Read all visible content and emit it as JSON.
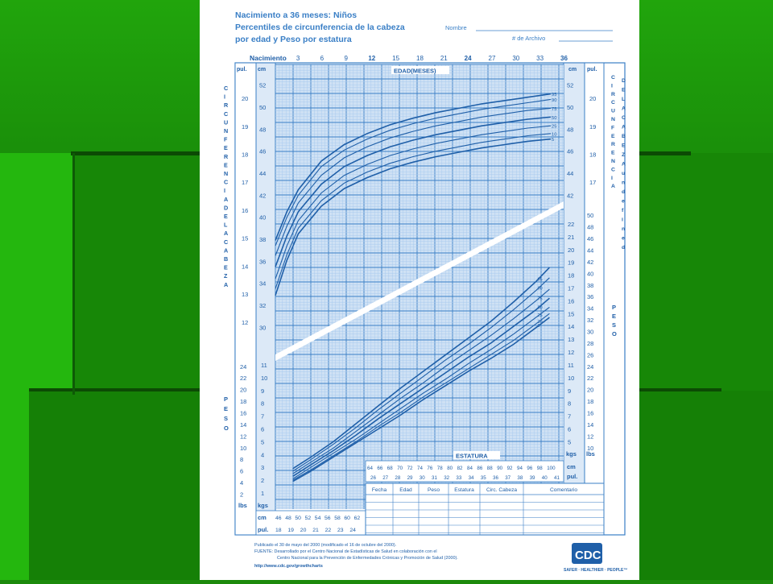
{
  "header": {
    "title_line1": "Nacimiento a 36 meses: Niños",
    "title_line2": "Percentiles de circunferencia de la cabeza",
    "title_line3": "por edad y Peso por estatura",
    "name_label": "Nombre",
    "file_label": "# de Archivo"
  },
  "axes": {
    "top_birth": "Nacimiento",
    "top_months": [
      "3",
      "6",
      "9",
      "12",
      "15",
      "18",
      "21",
      "24",
      "27",
      "30",
      "33",
      "36"
    ],
    "edad_label": "EDAD(MESES)",
    "estatura_label": "ESTATURA",
    "pul": "pul.",
    "cm": "cm",
    "kgs": "kgs",
    "lbs": "lbs",
    "left_vertical_head": "CIRCUNFERENCIA DE LA CABEZA",
    "right_vertical_head": "CIRCUNFERENCIA DE LA CABEZA",
    "left_vertical_weight": "PESO",
    "right_vertical_weight": "PESO",
    "head_cm_ticks": [
      "52",
      "50",
      "48",
      "46",
      "44",
      "42",
      "40",
      "38",
      "36",
      "34",
      "32",
      "30"
    ],
    "head_in_ticks_left": [
      "20",
      "19",
      "18",
      "17",
      "16",
      "15",
      "14",
      "13",
      "12"
    ],
    "head_in_ticks_right": [
      "20",
      "19",
      "18",
      "17"
    ],
    "head_cm_ticks_right": [
      "52",
      "50",
      "48",
      "46",
      "44",
      "42"
    ],
    "weight_kg_right": [
      "22",
      "21",
      "20",
      "19",
      "18",
      "17",
      "16",
      "15",
      "14",
      "13",
      "12",
      "11",
      "10",
      "9",
      "8",
      "7",
      "6",
      "5"
    ],
    "weight_lb_right": [
      "50",
      "48",
      "46",
      "44",
      "42",
      "40",
      "38",
      "36",
      "34",
      "32",
      "30",
      "28",
      "26",
      "24",
      "22",
      "20",
      "18",
      "16",
      "14",
      "12",
      "10"
    ],
    "weight_kg_left": [
      "11",
      "10",
      "9",
      "8",
      "7",
      "6",
      "5",
      "4",
      "3",
      "2",
      "1"
    ],
    "weight_lb_left": [
      "24",
      "22",
      "20",
      "18",
      "16",
      "14",
      "12",
      "10",
      "8",
      "6",
      "4",
      "2"
    ],
    "bottom_cm": [
      "46",
      "48",
      "50",
      "52",
      "54",
      "56",
      "58",
      "60",
      "62"
    ],
    "bottom_in": [
      "18",
      "19",
      "20",
      "21",
      "22",
      "23",
      "24"
    ],
    "stature_in_upper": [
      "64",
      "66",
      "68",
      "70",
      "72",
      "74",
      "76",
      "78",
      "80",
      "82",
      "84",
      "86",
      "88",
      "90",
      "92",
      "94",
      "96",
      "98",
      "100"
    ],
    "stature_in_lower": [
      "26",
      "27",
      "28",
      "29",
      "30",
      "31",
      "32",
      "33",
      "34",
      "35",
      "36",
      "37",
      "38",
      "39",
      "40",
      "41"
    ]
  },
  "table": {
    "headers": [
      "Fecha",
      "Edad",
      "Peso",
      "Estatura",
      "Circ. Cabeza",
      "Comentario"
    ]
  },
  "footer": {
    "line1": "Publicado el 30 de mayo del 2000 (modificado el 16 de octubre del 2000).",
    "line2": "FUENTE: Desarrollado por el Centro Nacional de Estadísticas de Salud en colaboración con el",
    "line3": "Centro Nacional para la Prevención de Enfermedades Crónicas y Promoción de Salud (2000).",
    "line4": "http://www.cdc.gov/growthcharts",
    "logo_text": "CDC",
    "logo_tagline": "SAFER · HEALTHIER · PEOPLE™"
  },
  "colors": {
    "grid_blue": "#3a7fc6",
    "grid_light": "#a9cbee",
    "curve_blue": "#1f5fa8",
    "slide_green": "#1c8a0c"
  },
  "chart_data": [
    {
      "type": "line",
      "title": "Percentiles de circunferencia de la cabeza",
      "xlabel": "EDAD(MESES)",
      "ylabel": "CIRCUNFERENCIA DE LA CABEZA",
      "xlim": [
        0,
        36
      ],
      "ylim": [
        29,
        53
      ],
      "x": [
        0,
        1.5,
        3,
        6,
        9,
        12,
        15,
        18,
        21,
        24,
        27,
        30,
        33,
        36
      ],
      "series": [
        {
          "name": "95",
          "values": [
            37.9,
            40.5,
            42.5,
            45.1,
            46.6,
            47.6,
            48.4,
            49.0,
            49.5,
            49.9,
            50.3,
            50.6,
            50.9,
            51.2
          ]
        },
        {
          "name": "90",
          "values": [
            37.4,
            40.0,
            42.0,
            44.6,
            46.1,
            47.1,
            47.9,
            48.5,
            49.0,
            49.4,
            49.8,
            50.1,
            50.4,
            50.7
          ]
        },
        {
          "name": "75",
          "values": [
            36.5,
            39.2,
            41.3,
            43.8,
            45.4,
            46.4,
            47.2,
            47.8,
            48.3,
            48.7,
            49.1,
            49.4,
            49.7,
            49.9
          ]
        },
        {
          "name": "50",
          "values": [
            35.5,
            38.3,
            40.5,
            43.0,
            44.6,
            45.6,
            46.4,
            47.0,
            47.5,
            47.9,
            48.3,
            48.6,
            48.9,
            49.1
          ]
        },
        {
          "name": "25",
          "values": [
            34.4,
            37.4,
            39.7,
            42.2,
            43.8,
            44.8,
            45.6,
            46.2,
            46.7,
            47.1,
            47.5,
            47.8,
            48.1,
            48.3
          ]
        },
        {
          "name": "10",
          "values": [
            33.5,
            36.6,
            39.0,
            41.5,
            43.1,
            44.1,
            44.9,
            45.5,
            46.0,
            46.4,
            46.8,
            47.1,
            47.4,
            47.6
          ]
        },
        {
          "name": "5",
          "values": [
            32.9,
            36.1,
            38.5,
            41.0,
            42.6,
            43.6,
            44.4,
            45.0,
            45.5,
            45.9,
            46.3,
            46.6,
            46.9,
            47.1
          ]
        }
      ]
    },
    {
      "type": "line",
      "title": "Peso por estatura",
      "xlabel": "ESTATURA",
      "ylabel": "PESO",
      "xlim": [
        45,
        104
      ],
      "ylim": [
        1,
        22
      ],
      "x": [
        46,
        50,
        55,
        60,
        65,
        70,
        75,
        80,
        85,
        90,
        95,
        100,
        103
      ],
      "series": [
        {
          "name": "95",
          "values": [
            2.9,
            3.8,
            5.0,
            6.4,
            7.8,
            9.2,
            10.5,
            11.8,
            13.1,
            14.4,
            15.9,
            17.5,
            18.6
          ]
        },
        {
          "name": "90",
          "values": [
            2.7,
            3.6,
            4.8,
            6.1,
            7.5,
            8.8,
            10.1,
            11.4,
            12.6,
            13.9,
            15.3,
            16.8,
            17.8
          ]
        },
        {
          "name": "75",
          "values": [
            2.5,
            3.4,
            4.5,
            5.8,
            7.1,
            8.4,
            9.6,
            10.9,
            12.1,
            13.3,
            14.6,
            16.0,
            16.9
          ]
        },
        {
          "name": "50",
          "values": [
            2.3,
            3.2,
            4.3,
            5.5,
            6.8,
            8.0,
            9.2,
            10.4,
            11.6,
            12.7,
            14.0,
            15.3,
            16.2
          ]
        },
        {
          "name": "25",
          "values": [
            2.1,
            3.0,
            4.1,
            5.2,
            6.4,
            7.6,
            8.8,
            9.9,
            11.1,
            12.2,
            13.4,
            14.7,
            15.5
          ]
        },
        {
          "name": "10",
          "values": [
            2.0,
            2.8,
            3.9,
            5.0,
            6.2,
            7.3,
            8.5,
            9.6,
            10.7,
            11.8,
            12.9,
            14.2,
            15.0
          ]
        },
        {
          "name": "5",
          "values": [
            1.9,
            2.7,
            3.8,
            4.9,
            6.0,
            7.1,
            8.3,
            9.4,
            10.5,
            11.5,
            12.6,
            13.9,
            14.7
          ]
        }
      ]
    }
  ]
}
